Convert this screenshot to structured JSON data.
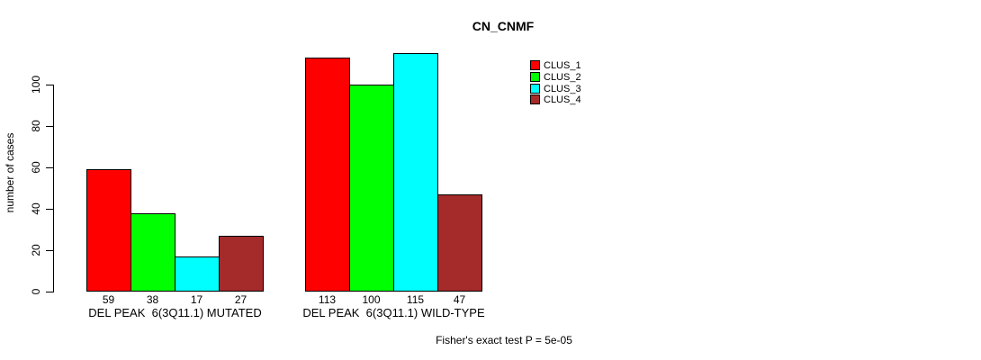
{
  "title": "CN_CNMF",
  "ylabel": "number of cases",
  "footnote": "Fisher's exact test P = 5e-05",
  "chart_data": {
    "type": "bar",
    "title": "CN_CNMF",
    "xlabel": "",
    "ylabel": "number of cases",
    "ylim": [
      0,
      115
    ],
    "yticks": [
      0,
      20,
      40,
      60,
      80,
      100
    ],
    "grid": false,
    "legend_position": "right",
    "series": [
      {
        "name": "CLUS_1",
        "color": "#FF0000",
        "values": [
          59,
          113
        ]
      },
      {
        "name": "CLUS_2",
        "color": "#00FF00",
        "values": [
          38,
          100
        ]
      },
      {
        "name": "CLUS_3",
        "color": "#00FFFF",
        "values": [
          17,
          115
        ]
      },
      {
        "name": "CLUS_4",
        "color": "#A52A2A",
        "values": [
          27,
          47
        ]
      }
    ],
    "groups": [
      {
        "label": "DEL PEAK  6(3Q11.1) MUTATED",
        "values": [
          59,
          38,
          17,
          27
        ]
      },
      {
        "label": "DEL PEAK  6(3Q11.1) WILD-TYPE",
        "values": [
          113,
          100,
          115,
          47
        ]
      }
    ],
    "bar_value_labels": [
      [
        "59",
        "38",
        "17",
        "27"
      ],
      [
        "113",
        "100",
        "115",
        "47"
      ]
    ],
    "annotation": "Fisher's exact test P = 5e-05"
  },
  "legend": {
    "items": [
      {
        "label": "CLUS_1",
        "color": "#FF0000"
      },
      {
        "label": "CLUS_2",
        "color": "#00FF00"
      },
      {
        "label": "CLUS_3",
        "color": "#00FFFF"
      },
      {
        "label": "CLUS_4",
        "color": "#A52A2A"
      }
    ]
  }
}
